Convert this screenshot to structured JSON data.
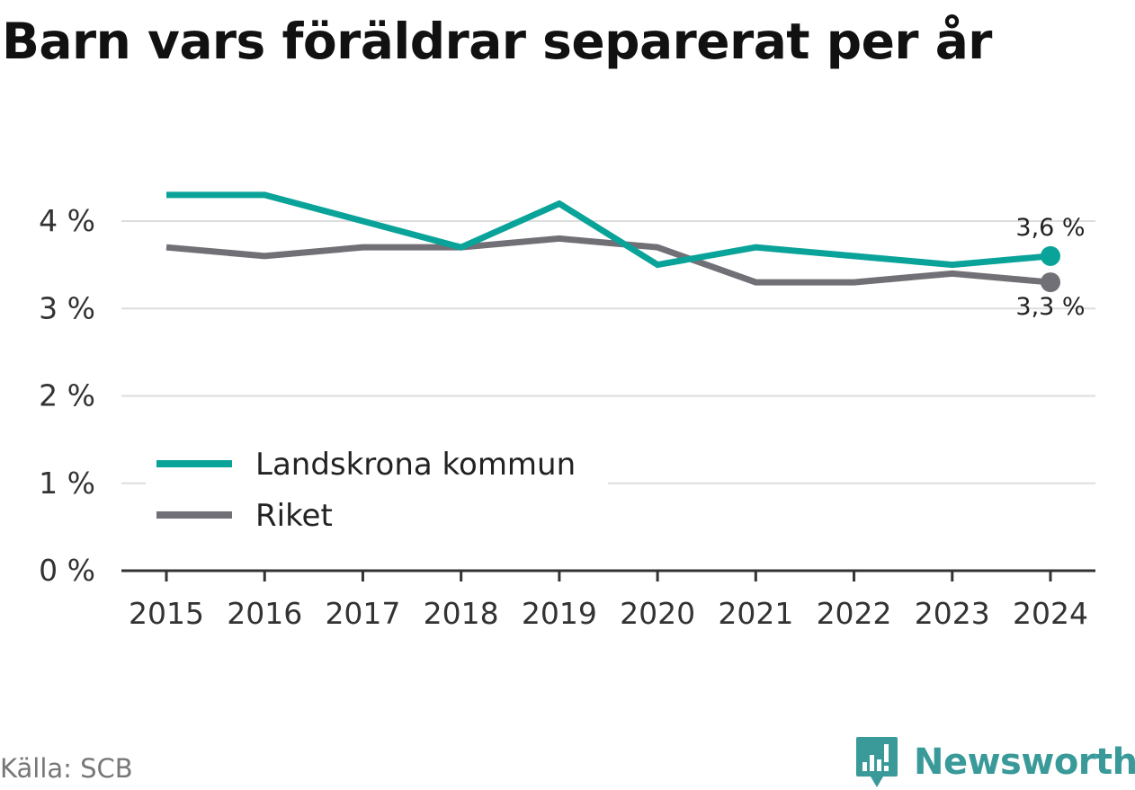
{
  "chart_data": {
    "type": "line",
    "title": "Barn vars föräldrar separerat per år",
    "categories": [
      "2015",
      "2016",
      "2017",
      "2018",
      "2019",
      "2020",
      "2021",
      "2022",
      "2023",
      "2024"
    ],
    "series": [
      {
        "name": "Landskrona kommun",
        "color": "#0aa39a",
        "values": [
          4.3,
          4.3,
          4.0,
          3.7,
          4.2,
          3.5,
          3.7,
          3.6,
          3.5,
          3.6
        ],
        "end_label": "3,6 %"
      },
      {
        "name": "Riket",
        "color": "#717076",
        "values": [
          3.7,
          3.6,
          3.7,
          3.7,
          3.8,
          3.7,
          3.3,
          3.3,
          3.4,
          3.3
        ],
        "end_label": "3,3 %"
      }
    ],
    "y_ticks": [
      {
        "value": 0,
        "label": "0 %"
      },
      {
        "value": 1,
        "label": "1 %"
      },
      {
        "value": 2,
        "label": "2 %"
      },
      {
        "value": 3,
        "label": "3 %"
      },
      {
        "value": 4,
        "label": "4 %"
      }
    ],
    "ylim": [
      0,
      4.6
    ],
    "grid": true,
    "legend_position": "bottom-left"
  },
  "footer": {
    "source": "Källa: SCB",
    "brand": "Newsworthy"
  }
}
